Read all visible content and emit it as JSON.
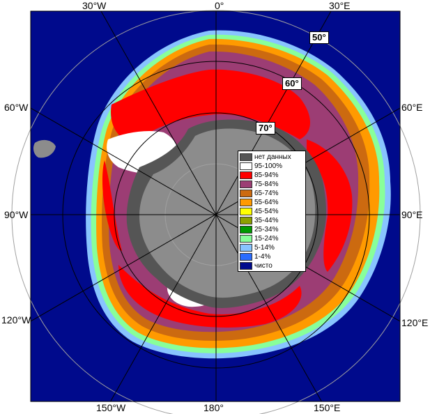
{
  "lon_labels": {
    "top_w30": "30°W",
    "top_0": "0°",
    "top_e30": "30°E",
    "left_w60": "60°W",
    "left_w90": "90°W",
    "left_w120": "120°W",
    "right_e60": "60°E",
    "right_e90": "90°E",
    "right_e120": "120°E",
    "bot_w150": "150°W",
    "bot_180": "180°",
    "bot_e150": "150°E"
  },
  "lat_labels": {
    "l50": "50°",
    "l60": "60°",
    "l70": "70°"
  },
  "legend": [
    {
      "label": "нет данных",
      "color": "#555555"
    },
    {
      "label": "95-100%",
      "color": "#ffffff"
    },
    {
      "label": "85-94%",
      "color": "#ff0000"
    },
    {
      "label": "75-84%",
      "color": "#9c3d74"
    },
    {
      "label": "65-74%",
      "color": "#cc6a10"
    },
    {
      "label": "55-64%",
      "color": "#ff9a00"
    },
    {
      "label": "45-54%",
      "color": "#ffff00"
    },
    {
      "label": "35-44%",
      "color": "#8ca000"
    },
    {
      "label": "25-34%",
      "color": "#009a00"
    },
    {
      "label": "15-24%",
      "color": "#88ff9a"
    },
    {
      "label": "5-14%",
      "color": "#88c4ff"
    },
    {
      "label": "1-4%",
      "color": "#2a6cff"
    },
    {
      "label": "чисто",
      "color": "#000a8c"
    }
  ],
  "colors": {
    "ocean": "#000a8c",
    "land": "#8c8c8c",
    "nodata": "#555555",
    "ice_high": "#ff0000",
    "ice_mid": "#9c3d74"
  }
}
